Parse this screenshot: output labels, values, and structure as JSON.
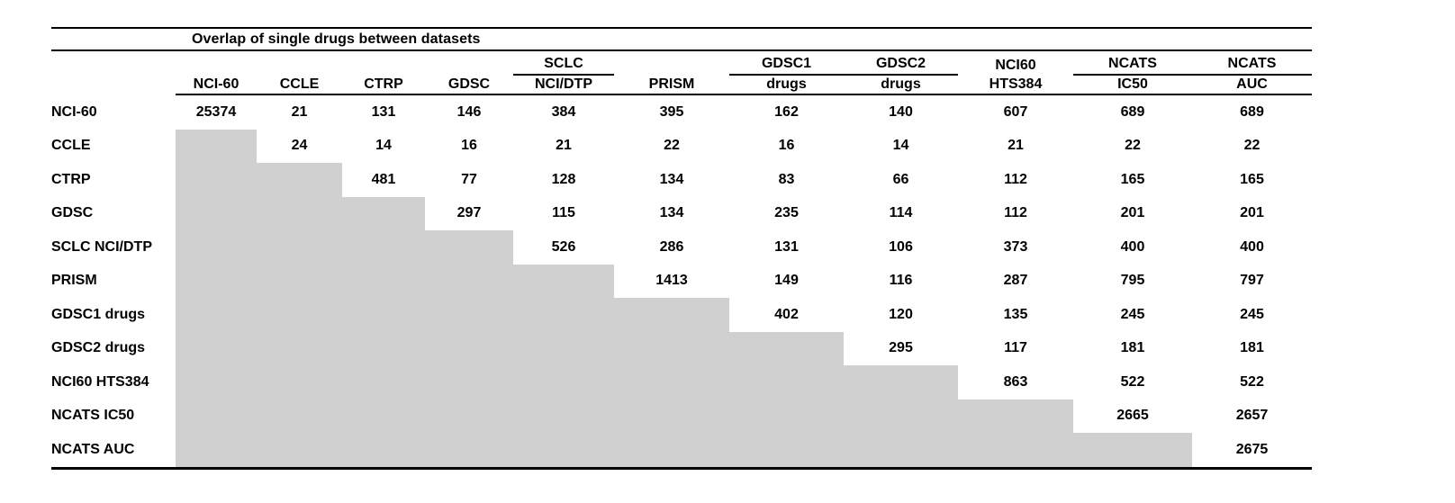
{
  "page": {
    "background_color": "#ffffff",
    "text_color": "#000000",
    "masked_cell_color": "#d0d0d0",
    "rule_color": "#000000"
  },
  "table": {
    "title": "Overlap of single drugs between datasets",
    "header_top": [
      "",
      "",
      "",
      "",
      "SCLC",
      "",
      "GDSC1",
      "GDSC2",
      "NCI60",
      "NCATS",
      "NCATS"
    ],
    "group_underline": [
      false,
      false,
      false,
      false,
      true,
      false,
      true,
      true,
      false,
      true,
      true
    ],
    "header_bottom": [
      "NCI-60",
      "CCLE",
      "CTRP",
      "GDSC",
      "NCI/DTP",
      "PRISM",
      "drugs",
      "drugs",
      "HTS384",
      "IC50",
      "AUC"
    ],
    "rows": [
      {
        "label": "NCI-60",
        "values": [
          "25374",
          "21",
          "131",
          "146",
          "384",
          "395",
          "162",
          "140",
          "607",
          "689",
          "689"
        ]
      },
      {
        "label": "CCLE",
        "values": [
          null,
          "24",
          "14",
          "16",
          "21",
          "22",
          "16",
          "14",
          "21",
          "22",
          "22"
        ]
      },
      {
        "label": "CTRP",
        "values": [
          null,
          null,
          "481",
          "77",
          "128",
          "134",
          "83",
          "66",
          "112",
          "165",
          "165"
        ]
      },
      {
        "label": "GDSC",
        "values": [
          null,
          null,
          null,
          "297",
          "115",
          "134",
          "235",
          "114",
          "112",
          "201",
          "201"
        ]
      },
      {
        "label": "SCLC NCI/DTP",
        "values": [
          null,
          null,
          null,
          null,
          "526",
          "286",
          "131",
          "106",
          "373",
          "400",
          "400"
        ]
      },
      {
        "label": "PRISM",
        "values": [
          null,
          null,
          null,
          null,
          null,
          "1413",
          "149",
          "116",
          "287",
          "795",
          "797"
        ]
      },
      {
        "label": "GDSC1 drugs",
        "values": [
          null,
          null,
          null,
          null,
          null,
          null,
          "402",
          "120",
          "135",
          "245",
          "245"
        ]
      },
      {
        "label": "GDSC2 drugs",
        "values": [
          null,
          null,
          null,
          null,
          null,
          null,
          null,
          "295",
          "117",
          "181",
          "181"
        ]
      },
      {
        "label": "NCI60 HTS384",
        "values": [
          null,
          null,
          null,
          null,
          null,
          null,
          null,
          null,
          "863",
          "522",
          "522"
        ]
      },
      {
        "label": "NCATS IC50",
        "values": [
          null,
          null,
          null,
          null,
          null,
          null,
          null,
          null,
          null,
          "2665",
          "2657"
        ]
      },
      {
        "label": "NCATS AUC",
        "values": [
          null,
          null,
          null,
          null,
          null,
          null,
          null,
          null,
          null,
          null,
          "2675"
        ]
      }
    ]
  }
}
